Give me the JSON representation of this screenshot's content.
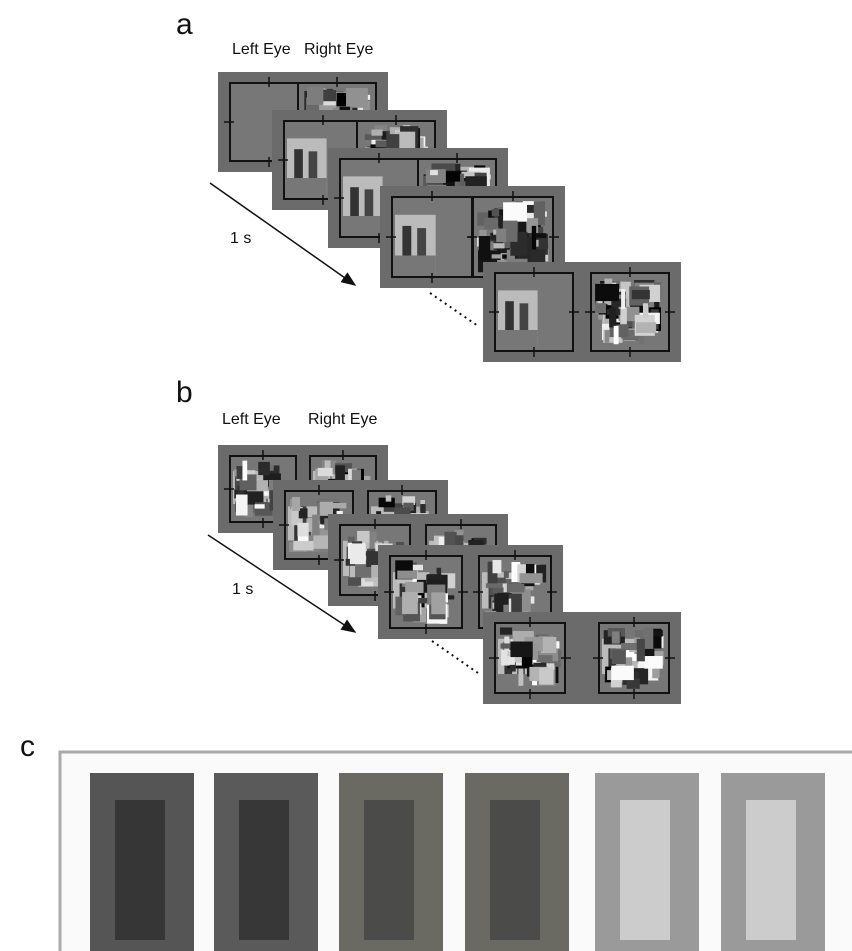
{
  "panel_a": {
    "label": "a",
    "left_eye": "Left Eye",
    "right_eye": "Right Eye",
    "duration": "1 s"
  },
  "panel_b": {
    "label": "b",
    "left_eye": "Left Eye",
    "right_eye": "Right Eye",
    "duration": "1 s"
  },
  "panel_c": {
    "label": "c"
  }
}
